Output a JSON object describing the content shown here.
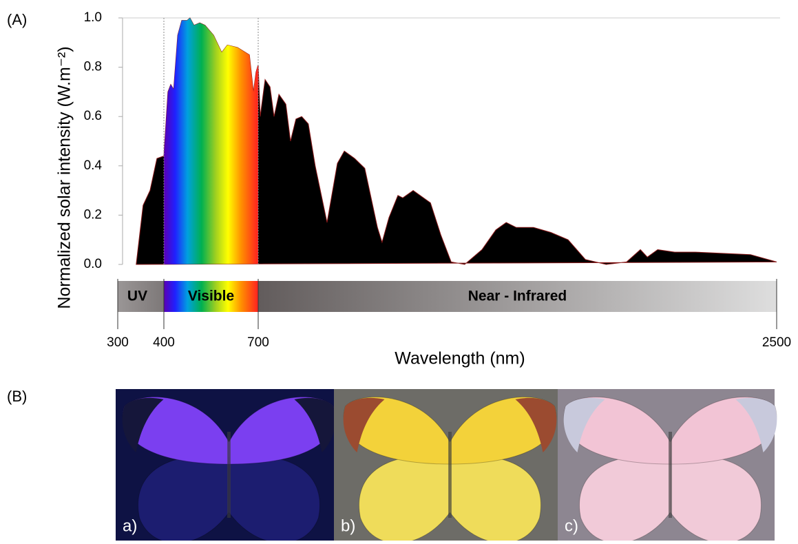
{
  "panel_labels": [
    "(A)",
    "(B)"
  ],
  "chart_data": {
    "type": "area",
    "ylabel": "Normalized solar intensity (W.m⁻²)",
    "xlabel": "Wavelength (nm)",
    "color": "#000000",
    "edge_color": "#8b1a1a",
    "x": [
      340,
      355,
      370,
      385,
      400,
      413,
      422,
      431,
      444,
      457,
      474,
      483,
      496,
      514,
      531,
      558,
      584,
      602,
      634,
      672,
      685,
      693,
      700,
      707,
      724,
      741,
      755,
      772,
      796,
      812,
      831,
      851,
      874,
      898,
      939,
      975,
      999,
      1035,
      1070,
      1114,
      1130,
      1154,
      1185,
      1202,
      1238,
      1298,
      1334,
      1370,
      1417,
      1477,
      1525,
      1561,
      1596,
      1656,
      1716,
      1776,
      1836,
      1908,
      1979,
      2027,
      2051,
      2087,
      2146,
      2218,
      2409,
      2500
    ],
    "values": [
      0,
      0.24,
      0.3,
      0.43,
      0.44,
      0.7,
      0.73,
      0.71,
      0.93,
      0.99,
      0.99,
      1.0,
      0.97,
      0.98,
      0.97,
      0.93,
      0.86,
      0.89,
      0.88,
      0.85,
      0.7,
      0.78,
      0.81,
      0.6,
      0.75,
      0.72,
      0.6,
      0.69,
      0.65,
      0.5,
      0.59,
      0.6,
      0.57,
      0.4,
      0.17,
      0.41,
      0.46,
      0.43,
      0.39,
      0.15,
      0.09,
      0.19,
      0.28,
      0.27,
      0.3,
      0.25,
      0.12,
      0.01,
      0.0,
      0.06,
      0.14,
      0.17,
      0.15,
      0.15,
      0.13,
      0.1,
      0.02,
      0.0,
      0.01,
      0.06,
      0.03,
      0.06,
      0.05,
      0.05,
      0.04,
      0.01
    ],
    "xlim": [
      300,
      2500
    ],
    "xticks": [
      300,
      400,
      700,
      2500
    ],
    "ylim": [
      0,
      1
    ],
    "yticks": [
      {
        "value": 0,
        "label": "0.0"
      },
      0.2,
      0.4,
      0.6,
      0.8,
      {
        "value": 1,
        "label": "1.0"
      }
    ],
    "bands": [
      {
        "label": "UV",
        "range": [
          300,
          400
        ]
      },
      {
        "label": "Visible",
        "range": [
          400,
          700
        ]
      },
      {
        "label": "Near - Infrared",
        "range": [
          700,
          2500
        ]
      }
    ]
  },
  "photos": [
    {
      "label": "a)",
      "background": "#0e1244",
      "forewing": "#7b3ff0",
      "hindwing": "#1c1d70",
      "tip": "#15163a"
    },
    {
      "label": "b)",
      "background": "#6d6c67",
      "forewing": "#f3d23a",
      "hindwing": "#efdc5a",
      "tip": "#9b4b30"
    },
    {
      "label": "c)",
      "background": "#8d8691",
      "forewing": "#f2c4d5",
      "hindwing": "#f1cad8",
      "tip": "#c8c9dc"
    }
  ]
}
